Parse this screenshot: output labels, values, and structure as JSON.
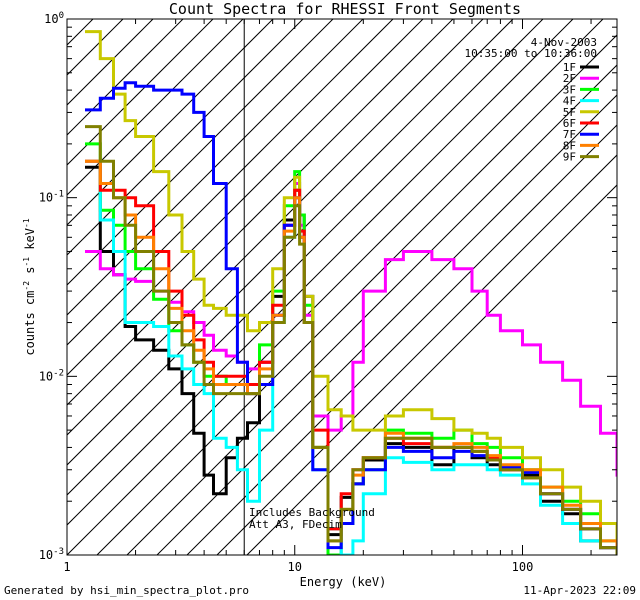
{
  "chart_data": {
    "type": "line",
    "title": "Count Spectra for RHESSI Front Segments",
    "xlabel": "Energy (keV)",
    "ylabel_parts": [
      "counts cm",
      "-2",
      " s",
      "-1",
      " keV",
      "-1"
    ],
    "xscale": "log",
    "yscale": "log",
    "xlim": [
      1.0,
      260
    ],
    "ylim": [
      0.001,
      1.0
    ],
    "x_ticks": [
      {
        "value": 1,
        "label": "1"
      },
      {
        "value": 10,
        "label": "10"
      },
      {
        "value": 100,
        "label": "100"
      }
    ],
    "y_ticks": [
      {
        "value": 0.001,
        "base": "10",
        "exp": "-3"
      },
      {
        "value": 0.01,
        "base": "10",
        "exp": "-2"
      },
      {
        "value": 0.1,
        "base": "10",
        "exp": "-1"
      },
      {
        "value": 1,
        "base": "10",
        "exp": "0"
      }
    ],
    "hatched_region_max_keV": 6,
    "date": "4-Nov-2003",
    "time_range": "10:35:00 to 10:36:00",
    "annotations": [
      "Includes Background",
      "Att A3, FDecim"
    ],
    "legend_position": "top-right",
    "series": [
      {
        "name": "1F",
        "color": "#000000",
        "x": [
          1.2,
          1.4,
          1.6,
          1.8,
          2.0,
          2.4,
          2.8,
          3.2,
          3.6,
          4.0,
          4.4,
          5.0,
          5.6,
          6.2,
          7,
          8,
          9,
          10,
          10.5,
          11,
          12,
          14,
          16,
          18,
          20,
          25,
          30,
          40,
          50,
          60,
          70,
          80,
          100,
          120,
          150,
          180,
          220,
          260
        ],
        "values": [
          0.148,
          0.05,
          0.037,
          0.019,
          0.016,
          0.014,
          0.011,
          0.008,
          0.0048,
          0.0028,
          0.0022,
          0.0035,
          0.0045,
          0.0055,
          0.012,
          0.028,
          0.075,
          0.11,
          0.08,
          0.028,
          0.006,
          0.0013,
          0.0021,
          0.0025,
          0.0034,
          0.0042,
          0.004,
          0.0032,
          0.004,
          0.0035,
          0.0032,
          0.003,
          0.0028,
          0.002,
          0.0017,
          0.0012,
          0.0011,
          0.001
        ]
      },
      {
        "name": "2F",
        "color": "#ff00ff",
        "x": [
          1.2,
          1.4,
          1.6,
          1.8,
          2.0,
          2.4,
          2.8,
          3.2,
          3.6,
          4.0,
          4.4,
          5.0,
          5.6,
          6.2,
          7,
          8,
          9,
          10,
          10.5,
          11,
          12,
          14,
          16,
          18,
          20,
          25,
          30,
          40,
          50,
          60,
          70,
          80,
          100,
          120,
          150,
          180,
          220,
          260
        ],
        "values": [
          0.05,
          0.04,
          0.037,
          0.035,
          0.034,
          0.03,
          0.026,
          0.023,
          0.02,
          0.017,
          0.014,
          0.013,
          0.012,
          0.011,
          0.012,
          0.022,
          0.07,
          0.12,
          0.07,
          0.022,
          0.006,
          0.005,
          0.006,
          0.012,
          0.03,
          0.045,
          0.05,
          0.045,
          0.04,
          0.03,
          0.022,
          0.018,
          0.015,
          0.012,
          0.0095,
          0.0068,
          0.0048,
          0.0028
        ]
      },
      {
        "name": "3F",
        "color": "#00ff00",
        "x": [
          1.2,
          1.4,
          1.6,
          1.8,
          2.0,
          2.4,
          2.8,
          3.2,
          3.6,
          4.0,
          4.4,
          5.0,
          5.6,
          6.2,
          7,
          8,
          9,
          10,
          10.5,
          11,
          12,
          14,
          16,
          18,
          20,
          25,
          30,
          40,
          50,
          60,
          70,
          80,
          100,
          120,
          150,
          180,
          220,
          260
        ],
        "values": [
          0.2,
          0.085,
          0.07,
          0.05,
          0.04,
          0.027,
          0.018,
          0.015,
          0.012,
          0.01,
          0.01,
          0.009,
          0.009,
          0.009,
          0.015,
          0.03,
          0.09,
          0.14,
          0.08,
          0.025,
          0.004,
          0.001,
          0.0015,
          0.0025,
          0.003,
          0.005,
          0.0048,
          0.0045,
          0.005,
          0.0042,
          0.004,
          0.0035,
          0.003,
          0.0024,
          0.002,
          0.0017,
          0.0012,
          0.001
        ]
      },
      {
        "name": "4F",
        "color": "#00ffff",
        "x": [
          1.2,
          1.4,
          1.6,
          1.8,
          2.0,
          2.4,
          2.8,
          3.2,
          3.6,
          4.0,
          4.4,
          5.0,
          5.6,
          6.2,
          7,
          8,
          9,
          10,
          10.5,
          11,
          12,
          14,
          16,
          18,
          20,
          25,
          30,
          40,
          50,
          60,
          70,
          80,
          100,
          120,
          150,
          180,
          220,
          260
        ],
        "values": [
          0.16,
          0.075,
          0.05,
          0.02,
          0.02,
          0.019,
          0.013,
          0.011,
          0.009,
          0.008,
          0.0045,
          0.004,
          0.003,
          0.002,
          0.005,
          0.02,
          0.06,
          0.1,
          0.06,
          0.02,
          0.003,
          0.0014,
          0.001,
          0.0012,
          0.0022,
          0.0035,
          0.0033,
          0.003,
          0.0032,
          0.0032,
          0.003,
          0.0028,
          0.0025,
          0.0019,
          0.0015,
          0.0012,
          0.0011,
          0.001
        ]
      },
      {
        "name": "5F",
        "color": "#c8c800",
        "x": [
          1.2,
          1.4,
          1.6,
          1.8,
          2.0,
          2.4,
          2.8,
          3.2,
          3.6,
          4.0,
          4.4,
          5.0,
          5.6,
          6.2,
          7,
          8,
          9,
          10,
          10.5,
          11,
          12,
          14,
          16,
          18,
          20,
          25,
          30,
          40,
          50,
          60,
          70,
          80,
          100,
          120,
          150,
          180,
          220,
          260
        ],
        "values": [
          0.85,
          0.6,
          0.38,
          0.27,
          0.22,
          0.14,
          0.08,
          0.05,
          0.035,
          0.025,
          0.024,
          0.022,
          0.022,
          0.018,
          0.02,
          0.04,
          0.1,
          0.13,
          0.06,
          0.028,
          0.01,
          0.0065,
          0.006,
          0.005,
          0.005,
          0.006,
          0.0065,
          0.0058,
          0.005,
          0.0048,
          0.0045,
          0.004,
          0.0035,
          0.003,
          0.0024,
          0.002,
          0.0015,
          0.0012
        ]
      },
      {
        "name": "6F",
        "color": "#ff0000",
        "x": [
          1.2,
          1.4,
          1.6,
          1.8,
          2.0,
          2.4,
          2.8,
          3.2,
          3.6,
          4.0,
          4.4,
          5.0,
          5.6,
          6.2,
          7,
          8,
          9,
          10,
          10.5,
          11,
          12,
          14,
          16,
          18,
          20,
          25,
          30,
          40,
          50,
          60,
          70,
          80,
          100,
          120,
          150,
          180,
          220,
          260
        ],
        "values": [
          0.16,
          0.11,
          0.11,
          0.1,
          0.09,
          0.05,
          0.03,
          0.022,
          0.016,
          0.012,
          0.01,
          0.01,
          0.01,
          0.009,
          0.012,
          0.025,
          0.07,
          0.11,
          0.065,
          0.02,
          0.005,
          0.0014,
          0.0022,
          0.003,
          0.0035,
          0.0045,
          0.0042,
          0.004,
          0.004,
          0.0038,
          0.0035,
          0.003,
          0.0027,
          0.0022,
          0.0018,
          0.0014,
          0.0011,
          0.001
        ]
      },
      {
        "name": "7F",
        "color": "#0000ff",
        "x": [
          1.2,
          1.4,
          1.6,
          1.8,
          2.0,
          2.4,
          2.8,
          3.2,
          3.6,
          4.0,
          4.4,
          5.0,
          5.6,
          6.2,
          7,
          8,
          9,
          10,
          10.5,
          11,
          12,
          14,
          16,
          18,
          20,
          25,
          30,
          40,
          50,
          60,
          70,
          80,
          100,
          120,
          150,
          180,
          220,
          260
        ],
        "values": [
          0.31,
          0.36,
          0.41,
          0.44,
          0.42,
          0.4,
          0.4,
          0.38,
          0.3,
          0.22,
          0.12,
          0.04,
          0.012,
          0.008,
          0.009,
          0.022,
          0.07,
          0.1,
          0.06,
          0.02,
          0.003,
          0.0011,
          0.0015,
          0.0025,
          0.003,
          0.004,
          0.0038,
          0.0035,
          0.0038,
          0.0036,
          0.0034,
          0.0031,
          0.0029,
          0.0022,
          0.0018,
          0.0014,
          0.0011,
          0.001
        ]
      },
      {
        "name": "8F",
        "color": "#ff8000",
        "x": [
          1.2,
          1.4,
          1.6,
          1.8,
          2.0,
          2.4,
          2.8,
          3.2,
          3.6,
          4.0,
          4.4,
          5.0,
          5.6,
          6.2,
          7,
          8,
          9,
          10,
          10.5,
          11,
          12,
          14,
          16,
          18,
          20,
          25,
          30,
          40,
          50,
          60,
          70,
          80,
          100,
          120,
          150,
          180,
          220,
          260
        ],
        "values": [
          0.16,
          0.12,
          0.1,
          0.08,
          0.06,
          0.04,
          0.024,
          0.018,
          0.014,
          0.011,
          0.009,
          0.009,
          0.009,
          0.008,
          0.011,
          0.022,
          0.065,
          0.1,
          0.06,
          0.02,
          0.004,
          0.0012,
          0.0018,
          0.0028,
          0.0035,
          0.0048,
          0.0045,
          0.004,
          0.0042,
          0.004,
          0.0036,
          0.0032,
          0.003,
          0.0024,
          0.0019,
          0.0015,
          0.0012,
          0.001
        ]
      },
      {
        "name": "9F",
        "color": "#808000",
        "x": [
          1.2,
          1.4,
          1.6,
          1.8,
          2.0,
          2.4,
          2.8,
          3.2,
          3.6,
          4.0,
          4.4,
          5.0,
          5.6,
          6.2,
          7,
          8,
          9,
          10,
          10.5,
          11,
          12,
          14,
          16,
          18,
          20,
          25,
          30,
          40,
          50,
          60,
          70,
          80,
          100,
          120,
          150,
          180,
          220,
          260
        ],
        "values": [
          0.25,
          0.16,
          0.1,
          0.07,
          0.05,
          0.03,
          0.02,
          0.015,
          0.012,
          0.009,
          0.008,
          0.008,
          0.008,
          0.008,
          0.01,
          0.02,
          0.06,
          0.09,
          0.055,
          0.02,
          0.004,
          0.0012,
          0.0018,
          0.003,
          0.0035,
          0.0045,
          0.0045,
          0.004,
          0.004,
          0.0038,
          0.0034,
          0.003,
          0.0027,
          0.0022,
          0.0018,
          0.0014,
          0.0011,
          0.001
        ]
      }
    ]
  },
  "footer": {
    "generated_by": "Generated by hsi_min_spectra_plot.pro",
    "timestamp": "11-Apr-2023 22:09"
  }
}
